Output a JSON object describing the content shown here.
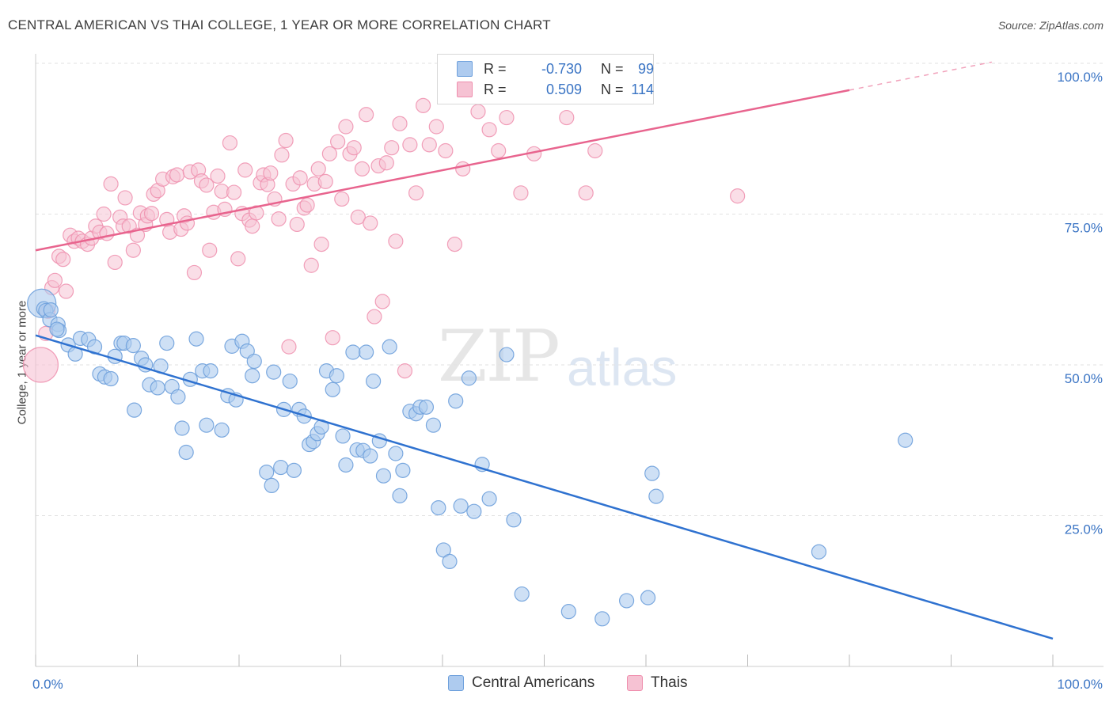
{
  "title": "CENTRAL AMERICAN VS THAI COLLEGE, 1 YEAR OR MORE CORRELATION CHART",
  "source": "Source: ZipAtlas.com",
  "watermark": {
    "zip": "ZIP",
    "atlas": "atlas"
  },
  "legend": {
    "r_label": "R =",
    "n_label": "N =",
    "series": [
      {
        "name": "Central Americans",
        "r": "-0.730",
        "n": "99",
        "color": "#6ea0dc"
      },
      {
        "name": "Thais",
        "r": "0.509",
        "n": "114",
        "color": "#ef8fae"
      }
    ]
  },
  "colors": {
    "blue_fill": "#aecbef",
    "blue_stroke": "#6ea0dc",
    "blue_line": "#2f72d0",
    "pink_fill": "#f6c2d3",
    "pink_stroke": "#ef8fae",
    "pink_line": "#e8648e",
    "axis_text": "#3a74c4"
  },
  "chart_data": {
    "type": "scatter",
    "title": "CENTRAL AMERICAN VS THAI COLLEGE, 1 YEAR OR MORE CORRELATION CHART",
    "xlabel": "",
    "ylabel": "College, 1 year or more",
    "xlim": [
      0,
      100
    ],
    "ylim": [
      0,
      100
    ],
    "x_tick_labels": [
      "0.0%",
      "100.0%"
    ],
    "y_ticks": [
      25,
      50,
      75,
      100
    ],
    "y_tick_labels": [
      "25.0%",
      "50.0%",
      "75.0%",
      "100.0%"
    ],
    "grid": true,
    "series": [
      {
        "name": "Central Americans",
        "r": -0.73,
        "n": 99,
        "trend": {
          "x": [
            0,
            100
          ],
          "y": [
            54.9,
            4.6
          ],
          "solid_to": 100
        },
        "points": [
          [
            0.6,
            60.2
          ],
          [
            0.8,
            59.3
          ],
          [
            1.0,
            59.0
          ],
          [
            1.4,
            57.5
          ],
          [
            2.2,
            56.7
          ],
          [
            2.3,
            55.7
          ],
          [
            3.2,
            53.3
          ],
          [
            3.9,
            51.8
          ],
          [
            4.4,
            54.4
          ],
          [
            5.2,
            54.2
          ],
          [
            5.8,
            53.0
          ],
          [
            6.3,
            48.5
          ],
          [
            6.8,
            48.0
          ],
          [
            7.4,
            47.7
          ],
          [
            7.8,
            51.4
          ],
          [
            8.4,
            53.6
          ],
          [
            8.7,
            53.6
          ],
          [
            9.6,
            53.2
          ],
          [
            9.7,
            42.5
          ],
          [
            10.4,
            51.1
          ],
          [
            10.8,
            50.0
          ],
          [
            11.2,
            46.7
          ],
          [
            12.0,
            46.2
          ],
          [
            12.3,
            49.8
          ],
          [
            12.9,
            53.6
          ],
          [
            13.4,
            46.4
          ],
          [
            14.0,
            44.7
          ],
          [
            14.4,
            39.5
          ],
          [
            14.8,
            35.5
          ],
          [
            15.2,
            47.6
          ],
          [
            15.8,
            54.3
          ],
          [
            16.4,
            49.0
          ],
          [
            16.8,
            40.0
          ],
          [
            17.2,
            49.0
          ],
          [
            18.3,
            39.2
          ],
          [
            18.9,
            44.9
          ],
          [
            19.3,
            53.1
          ],
          [
            19.7,
            44.2
          ],
          [
            20.3,
            53.9
          ],
          [
            20.8,
            52.3
          ],
          [
            21.3,
            48.2
          ],
          [
            21.5,
            50.6
          ],
          [
            22.7,
            32.2
          ],
          [
            23.2,
            30.0
          ],
          [
            23.4,
            48.8
          ],
          [
            24.1,
            33.0
          ],
          [
            24.4,
            42.6
          ],
          [
            25.0,
            47.3
          ],
          [
            25.4,
            32.5
          ],
          [
            25.9,
            42.6
          ],
          [
            26.4,
            41.5
          ],
          [
            26.9,
            36.8
          ],
          [
            27.3,
            37.3
          ],
          [
            27.7,
            38.6
          ],
          [
            28.1,
            39.7
          ],
          [
            28.6,
            49.0
          ],
          [
            29.2,
            45.9
          ],
          [
            29.6,
            48.2
          ],
          [
            30.2,
            38.2
          ],
          [
            30.5,
            33.4
          ],
          [
            31.2,
            52.1
          ],
          [
            31.6,
            35.9
          ],
          [
            32.2,
            35.8
          ],
          [
            32.5,
            52.1
          ],
          [
            32.9,
            34.9
          ],
          [
            33.2,
            47.3
          ],
          [
            33.8,
            37.4
          ],
          [
            34.2,
            31.6
          ],
          [
            34.8,
            53.0
          ],
          [
            35.4,
            35.3
          ],
          [
            35.8,
            28.3
          ],
          [
            36.1,
            32.5
          ],
          [
            36.8,
            42.3
          ],
          [
            37.4,
            41.9
          ],
          [
            37.8,
            43.0
          ],
          [
            38.4,
            43.0
          ],
          [
            39.1,
            40.0
          ],
          [
            39.6,
            26.3
          ],
          [
            40.1,
            19.3
          ],
          [
            40.7,
            17.4
          ],
          [
            41.3,
            44.0
          ],
          [
            41.8,
            26.6
          ],
          [
            42.6,
            47.8
          ],
          [
            43.1,
            25.7
          ],
          [
            43.9,
            33.5
          ],
          [
            44.6,
            27.8
          ],
          [
            46.3,
            51.7
          ],
          [
            47.0,
            24.3
          ],
          [
            47.8,
            12.0
          ],
          [
            52.4,
            9.1
          ],
          [
            55.7,
            7.9
          ],
          [
            58.1,
            10.9
          ],
          [
            60.2,
            11.4
          ],
          [
            60.6,
            32.0
          ],
          [
            61.0,
            28.2
          ],
          [
            77.0,
            19.0
          ],
          [
            85.5,
            37.5
          ],
          [
            1.5,
            59.1
          ],
          [
            2.1,
            55.9
          ]
        ]
      },
      {
        "name": "Thais",
        "r": 0.509,
        "n": 114,
        "trend": {
          "x": [
            0,
            94
          ],
          "y": [
            69.0,
            100.2
          ],
          "solid_to": 80
        },
        "points": [
          [
            0.5,
            50.0
          ],
          [
            1.0,
            55.2
          ],
          [
            1.2,
            58.9
          ],
          [
            1.6,
            62.8
          ],
          [
            1.9,
            64.0
          ],
          [
            2.3,
            68.0
          ],
          [
            2.7,
            67.5
          ],
          [
            3.0,
            62.2
          ],
          [
            3.4,
            71.5
          ],
          [
            3.8,
            70.5
          ],
          [
            4.2,
            71.0
          ],
          [
            4.6,
            70.5
          ],
          [
            5.1,
            70.0
          ],
          [
            5.5,
            71.0
          ],
          [
            5.9,
            73.0
          ],
          [
            6.3,
            72.0
          ],
          [
            6.7,
            75.0
          ],
          [
            7.0,
            71.8
          ],
          [
            7.4,
            80.0
          ],
          [
            7.8,
            67.0
          ],
          [
            8.3,
            74.5
          ],
          [
            8.6,
            73.0
          ],
          [
            8.8,
            77.7
          ],
          [
            9.2,
            73.0
          ],
          [
            9.6,
            69.0
          ],
          [
            10.0,
            71.5
          ],
          [
            10.3,
            75.2
          ],
          [
            10.8,
            73.3
          ],
          [
            11.0,
            74.7
          ],
          [
            11.4,
            75.1
          ],
          [
            11.6,
            78.3
          ],
          [
            12.0,
            78.9
          ],
          [
            12.5,
            80.8
          ],
          [
            12.9,
            74.1
          ],
          [
            13.2,
            72.0
          ],
          [
            13.5,
            81.2
          ],
          [
            13.9,
            81.5
          ],
          [
            14.3,
            72.5
          ],
          [
            14.6,
            74.7
          ],
          [
            14.9,
            73.5
          ],
          [
            15.2,
            82.0
          ],
          [
            15.6,
            65.3
          ],
          [
            16.0,
            82.3
          ],
          [
            16.3,
            80.5
          ],
          [
            16.8,
            79.8
          ],
          [
            17.1,
            69.0
          ],
          [
            17.5,
            75.3
          ],
          [
            17.9,
            81.3
          ],
          [
            18.3,
            78.8
          ],
          [
            18.6,
            75.8
          ],
          [
            19.1,
            86.8
          ],
          [
            19.5,
            78.6
          ],
          [
            19.9,
            67.6
          ],
          [
            20.3,
            75.1
          ],
          [
            20.6,
            82.3
          ],
          [
            21.0,
            74.0
          ],
          [
            21.3,
            73.0
          ],
          [
            21.7,
            75.2
          ],
          [
            22.1,
            80.2
          ],
          [
            22.4,
            81.5
          ],
          [
            22.8,
            79.9
          ],
          [
            23.1,
            81.8
          ],
          [
            23.5,
            77.5
          ],
          [
            23.9,
            74.2
          ],
          [
            24.2,
            84.8
          ],
          [
            24.6,
            87.2
          ],
          [
            24.9,
            53.0
          ],
          [
            25.3,
            80.0
          ],
          [
            25.7,
            73.3
          ],
          [
            26.0,
            81.0
          ],
          [
            26.4,
            76.0
          ],
          [
            26.7,
            76.5
          ],
          [
            27.1,
            66.5
          ],
          [
            27.4,
            80.0
          ],
          [
            27.8,
            82.5
          ],
          [
            28.1,
            70.0
          ],
          [
            28.5,
            80.4
          ],
          [
            28.9,
            85.0
          ],
          [
            29.2,
            54.5
          ],
          [
            29.7,
            87.0
          ],
          [
            30.1,
            77.5
          ],
          [
            30.5,
            89.5
          ],
          [
            30.9,
            85.0
          ],
          [
            31.3,
            86.0
          ],
          [
            31.7,
            74.5
          ],
          [
            32.1,
            82.5
          ],
          [
            32.5,
            91.5
          ],
          [
            32.9,
            73.5
          ],
          [
            33.3,
            58.0
          ],
          [
            33.7,
            83.0
          ],
          [
            34.1,
            60.5
          ],
          [
            34.5,
            83.5
          ],
          [
            35.0,
            86.0
          ],
          [
            35.4,
            70.5
          ],
          [
            35.8,
            90.0
          ],
          [
            36.3,
            49.0
          ],
          [
            36.8,
            86.5
          ],
          [
            37.4,
            78.5
          ],
          [
            38.1,
            93.0
          ],
          [
            38.7,
            86.5
          ],
          [
            39.4,
            89.5
          ],
          [
            40.3,
            85.5
          ],
          [
            41.2,
            70.0
          ],
          [
            42.0,
            82.5
          ],
          [
            43.5,
            92.0
          ],
          [
            44.6,
            89.0
          ],
          [
            45.5,
            85.5
          ],
          [
            46.3,
            91.0
          ],
          [
            47.7,
            78.5
          ],
          [
            49.0,
            85.0
          ],
          [
            52.2,
            91.0
          ],
          [
            54.1,
            78.5
          ],
          [
            55.0,
            85.5
          ],
          [
            69.0,
            78.0
          ]
        ]
      }
    ]
  }
}
